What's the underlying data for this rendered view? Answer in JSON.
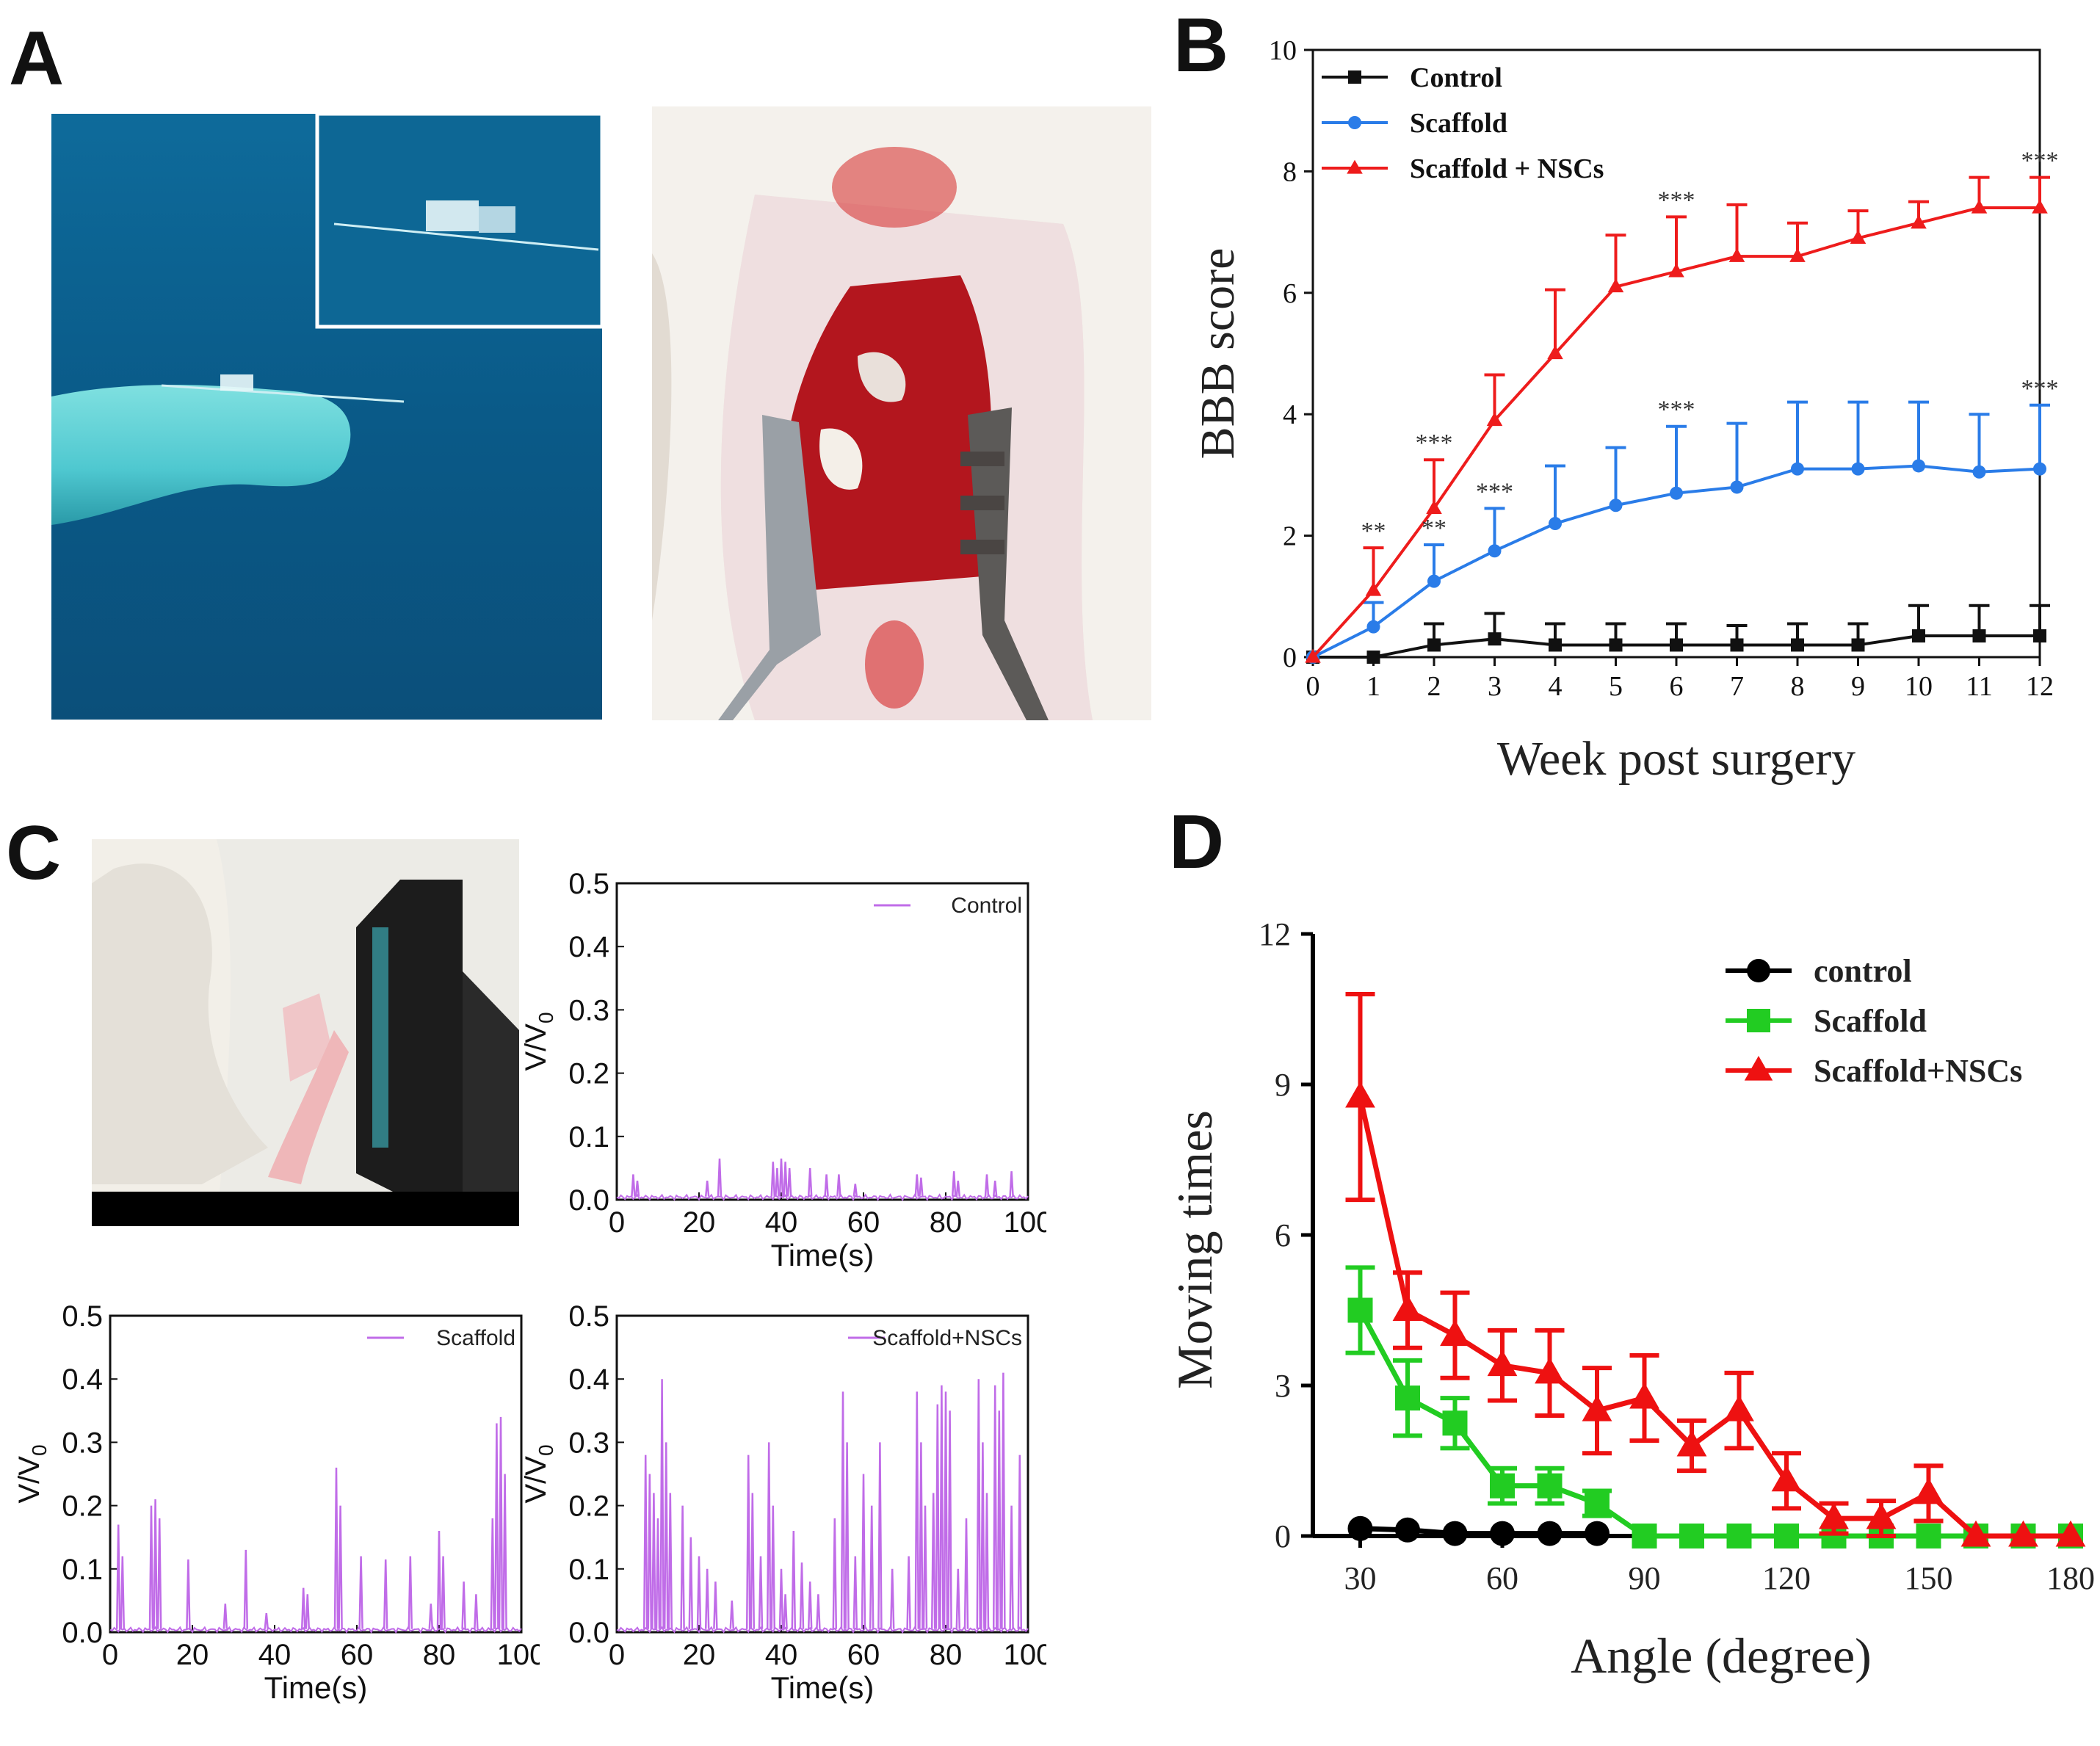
{
  "panels": {
    "a": "A",
    "b": "B",
    "c": "C",
    "d": "D"
  },
  "colors": {
    "control_b": "#111111",
    "scaffold_b": "#2a7ce8",
    "nscs_b": "#ee1c1c",
    "trace": "#c06ce8",
    "control_d": "#000000",
    "scaffold_d": "#22cc22",
    "nscs_d": "#ee1111",
    "tank_blue": "#0b5f8f",
    "skin": "#f2e6e4",
    "wound": "#b3161e"
  },
  "chart_data": [
    {
      "id": "B",
      "type": "line",
      "xlabel": "Week post surgery",
      "ylabel": "BBB score",
      "xlim": [
        0,
        12
      ],
      "ylim": [
        0,
        10
      ],
      "xticks": [
        "0",
        "1",
        "2",
        "3",
        "4",
        "5",
        "6",
        "7",
        "8",
        "9",
        "10",
        "11",
        "12"
      ],
      "yticks": [
        "0",
        "2",
        "4",
        "6",
        "8",
        "10"
      ],
      "x": [
        0,
        1,
        2,
        3,
        4,
        5,
        6,
        7,
        8,
        9,
        10,
        11,
        12
      ],
      "series": [
        {
          "name": "Control",
          "marker": "square",
          "values": [
            0,
            0,
            0.2,
            0.3,
            0.2,
            0.2,
            0.2,
            0.2,
            0.2,
            0.2,
            0.35,
            0.35,
            0.35
          ],
          "errors": [
            0,
            0,
            0.35,
            0.42,
            0.35,
            0.35,
            0.35,
            0.32,
            0.35,
            0.35,
            0.5,
            0.5,
            0.5
          ]
        },
        {
          "name": "Scaffold",
          "marker": "circle",
          "values": [
            0,
            0.5,
            1.25,
            1.75,
            2.2,
            2.5,
            2.7,
            2.8,
            3.1,
            3.1,
            3.15,
            3.05,
            3.1
          ],
          "errors": [
            0,
            0.4,
            0.6,
            0.7,
            0.95,
            0.95,
            1.1,
            1.05,
            1.1,
            1.1,
            1.05,
            0.95,
            1.05
          ]
        },
        {
          "name": "Scaffold + NSCs",
          "marker": "triangle",
          "values": [
            0,
            1.1,
            2.45,
            3.9,
            5.0,
            6.1,
            6.35,
            6.6,
            6.6,
            6.9,
            7.15,
            7.4,
            7.4
          ],
          "errors": [
            0,
            0.7,
            0.8,
            0.75,
            1.05,
            0.85,
            0.9,
            0.85,
            0.55,
            0.45,
            0.35,
            0.5,
            0.5
          ]
        }
      ],
      "annotations": [
        {
          "x": 1,
          "y": 1.8,
          "text": "**"
        },
        {
          "x": 2,
          "y": 3.25,
          "text": "***"
        },
        {
          "x": 2,
          "y": 1.85,
          "text": "**"
        },
        {
          "x": 3,
          "y": 2.45,
          "text": "***"
        },
        {
          "x": 6,
          "y": 7.25,
          "text": "***"
        },
        {
          "x": 6,
          "y": 3.8,
          "text": "***"
        },
        {
          "x": 12,
          "y": 7.9,
          "text": "***"
        },
        {
          "x": 12,
          "y": 4.15,
          "text": "***"
        }
      ]
    },
    {
      "id": "C1",
      "type": "line",
      "legend": "Control",
      "xlabel": "Time(s)",
      "ylabel": "V/V",
      "ylabel_sub": "0",
      "xlim": [
        0,
        100
      ],
      "ylim": [
        0,
        0.5
      ],
      "xticks": [
        "0",
        "20",
        "40",
        "60",
        "80",
        "100"
      ],
      "yticks": [
        "0.0",
        "0.1",
        "0.2",
        "0.3",
        "0.4",
        "0.5"
      ],
      "spikes": [
        [
          4,
          0.04
        ],
        [
          5,
          0.03
        ],
        [
          22,
          0.03
        ],
        [
          25,
          0.065
        ],
        [
          38,
          0.06
        ],
        [
          39,
          0.05
        ],
        [
          40,
          0.065
        ],
        [
          41,
          0.06
        ],
        [
          42,
          0.05
        ],
        [
          47,
          0.05
        ],
        [
          51,
          0.04
        ],
        [
          54,
          0.04
        ],
        [
          58,
          0.025
        ],
        [
          73,
          0.04
        ],
        [
          74,
          0.035
        ],
        [
          82,
          0.045
        ],
        [
          83,
          0.03
        ],
        [
          90,
          0.04
        ],
        [
          92,
          0.03
        ],
        [
          96,
          0.045
        ]
      ]
    },
    {
      "id": "C2",
      "type": "line",
      "legend": "Scaffold",
      "xlabel": "Time(s)",
      "ylabel": "V/V",
      "ylabel_sub": "0",
      "xlim": [
        0,
        100
      ],
      "ylim": [
        0,
        0.5
      ],
      "xticks": [
        "0",
        "20",
        "40",
        "60",
        "80",
        "100"
      ],
      "yticks": [
        "0.0",
        "0.1",
        "0.2",
        "0.3",
        "0.4",
        "0.5"
      ],
      "spikes": [
        [
          2,
          0.17
        ],
        [
          3,
          0.12
        ],
        [
          10,
          0.2
        ],
        [
          11,
          0.21
        ],
        [
          12,
          0.18
        ],
        [
          19,
          0.115
        ],
        [
          28,
          0.045
        ],
        [
          33,
          0.13
        ],
        [
          38,
          0.03
        ],
        [
          47,
          0.07
        ],
        [
          48,
          0.06
        ],
        [
          55,
          0.26
        ],
        [
          56,
          0.2
        ],
        [
          61,
          0.12
        ],
        [
          67,
          0.115
        ],
        [
          73,
          0.12
        ],
        [
          78,
          0.045
        ],
        [
          80,
          0.16
        ],
        [
          81,
          0.12
        ],
        [
          86,
          0.08
        ],
        [
          89,
          0.06
        ],
        [
          93,
          0.18
        ],
        [
          94,
          0.33
        ],
        [
          95,
          0.34
        ],
        [
          96,
          0.25
        ]
      ]
    },
    {
      "id": "C3",
      "type": "line",
      "legend": "Scaffold+NSCs",
      "xlabel": "Time(s)",
      "ylabel": "V/V",
      "ylabel_sub": "0",
      "xlim": [
        0,
        100
      ],
      "ylim": [
        0,
        0.5
      ],
      "xticks": [
        "0",
        "20",
        "40",
        "60",
        "80",
        "100"
      ],
      "yticks": [
        "0.0",
        "0.1",
        "0.2",
        "0.3",
        "0.4",
        "0.5"
      ],
      "spikes": [
        [
          7,
          0.28
        ],
        [
          8,
          0.25
        ],
        [
          9,
          0.22
        ],
        [
          10,
          0.18
        ],
        [
          11,
          0.4
        ],
        [
          12,
          0.3
        ],
        [
          13,
          0.22
        ],
        [
          16,
          0.2
        ],
        [
          18,
          0.15
        ],
        [
          20,
          0.12
        ],
        [
          22,
          0.1
        ],
        [
          24,
          0.08
        ],
        [
          28,
          0.05
        ],
        [
          32,
          0.28
        ],
        [
          33,
          0.22
        ],
        [
          35,
          0.12
        ],
        [
          37,
          0.3
        ],
        [
          38,
          0.2
        ],
        [
          40,
          0.1
        ],
        [
          41,
          0.06
        ],
        [
          43,
          0.16
        ],
        [
          45,
          0.11
        ],
        [
          47,
          0.08
        ],
        [
          49,
          0.06
        ],
        [
          53,
          0.18
        ],
        [
          55,
          0.38
        ],
        [
          56,
          0.3
        ],
        [
          58,
          0.12
        ],
        [
          60,
          0.25
        ],
        [
          62,
          0.2
        ],
        [
          64,
          0.3
        ],
        [
          67,
          0.1
        ],
        [
          71,
          0.12
        ],
        [
          73,
          0.38
        ],
        [
          74,
          0.3
        ],
        [
          75,
          0.2
        ],
        [
          77,
          0.22
        ],
        [
          78,
          0.36
        ],
        [
          79,
          0.39
        ],
        [
          80,
          0.38
        ],
        [
          81,
          0.35
        ],
        [
          83,
          0.1
        ],
        [
          85,
          0.18
        ],
        [
          88,
          0.4
        ],
        [
          89,
          0.3
        ],
        [
          90,
          0.22
        ],
        [
          92,
          0.39
        ],
        [
          93,
          0.35
        ],
        [
          94,
          0.41
        ],
        [
          96,
          0.2
        ],
        [
          98,
          0.28
        ]
      ]
    },
    {
      "id": "D",
      "type": "line",
      "xlabel": "Angle (degree)",
      "ylabel": "Moving times",
      "xlim": [
        20,
        180
      ],
      "ylim": [
        0,
        12
      ],
      "xticks": [
        "30",
        "60",
        "90",
        "120",
        "150",
        "180"
      ],
      "yticks": [
        "0",
        "3",
        "6",
        "9",
        "12"
      ],
      "series": [
        {
          "name": "control",
          "marker": "circle",
          "x": [
            30,
            40,
            50,
            60,
            70,
            80
          ],
          "values": [
            0.15,
            0.12,
            0.05,
            0.05,
            0.05,
            0.05
          ],
          "errors": [
            0,
            0,
            0,
            0,
            0,
            0
          ]
        },
        {
          "name": "Scaffold",
          "marker": "square",
          "x": [
            30,
            40,
            50,
            60,
            70,
            80,
            90,
            100,
            110,
            120,
            130,
            140,
            150,
            160,
            170,
            180
          ],
          "values": [
            4.5,
            2.75,
            2.25,
            1.0,
            1.0,
            0.65,
            0,
            0,
            0,
            0,
            0,
            0,
            0,
            0,
            0,
            0
          ],
          "errors": [
            0.85,
            0.75,
            0.5,
            0.35,
            0.35,
            0.25,
            0,
            0,
            0,
            0,
            0,
            0,
            0,
            0,
            0,
            0
          ]
        },
        {
          "name": "Scaffold+NSCs",
          "marker": "triangle",
          "x": [
            30,
            40,
            50,
            60,
            70,
            80,
            90,
            100,
            110,
            120,
            130,
            140,
            150,
            160,
            170,
            180
          ],
          "values": [
            8.75,
            4.5,
            4.0,
            3.4,
            3.25,
            2.5,
            2.75,
            1.8,
            2.5,
            1.1,
            0.35,
            0.35,
            0.85,
            0,
            0,
            0
          ],
          "errors": [
            2.05,
            0.75,
            0.85,
            0.7,
            0.85,
            0.85,
            0.85,
            0.5,
            0.75,
            0.55,
            0.3,
            0.35,
            0.55,
            0,
            0,
            0
          ]
        }
      ]
    }
  ]
}
